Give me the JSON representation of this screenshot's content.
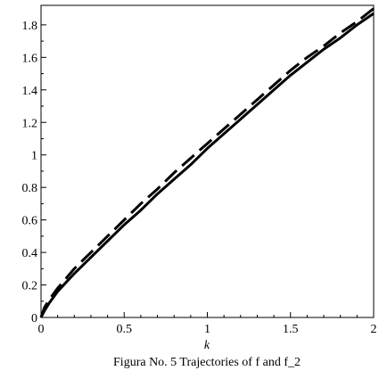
{
  "chart_data": {
    "type": "line",
    "xlabel": "k",
    "ylabel": "",
    "xlim": [
      0,
      2
    ],
    "ylim": [
      0,
      1.92
    ],
    "xticks": [
      "0",
      "0.5",
      "1",
      "1.5",
      "2"
    ],
    "yticks": [
      "0",
      "0.2",
      "0.4",
      "0.6",
      "0.8",
      "1",
      "1.2",
      "1.4",
      "1.6",
      "1.8"
    ],
    "grid": false,
    "series": [
      {
        "style": "solid",
        "color": "#000000",
        "x": [
          0,
          0.02,
          0.05,
          0.1,
          0.2,
          0.3,
          0.4,
          0.5,
          0.6,
          0.7,
          0.8,
          0.9,
          1.0,
          1.1,
          1.2,
          1.3,
          1.4,
          1.5,
          1.6,
          1.7,
          1.8,
          1.9,
          2.0
        ],
        "y": [
          0,
          0.04,
          0.09,
          0.16,
          0.27,
          0.37,
          0.47,
          0.57,
          0.66,
          0.76,
          0.85,
          0.94,
          1.04,
          1.13,
          1.22,
          1.31,
          1.4,
          1.49,
          1.57,
          1.65,
          1.72,
          1.8,
          1.87
        ]
      },
      {
        "style": "dashed",
        "color": "#000000",
        "x": [
          0,
          0.02,
          0.05,
          0.1,
          0.2,
          0.3,
          0.4,
          0.5,
          0.6,
          0.7,
          0.8,
          0.9,
          1.0,
          1.1,
          1.2,
          1.3,
          1.4,
          1.5,
          1.6,
          1.7,
          1.8,
          1.9,
          2.0
        ],
        "y": [
          0,
          0.06,
          0.11,
          0.18,
          0.3,
          0.4,
          0.5,
          0.6,
          0.7,
          0.79,
          0.89,
          0.98,
          1.07,
          1.16,
          1.25,
          1.34,
          1.43,
          1.52,
          1.6,
          1.67,
          1.75,
          1.82,
          1.9
        ]
      }
    ]
  },
  "caption": "Figura No. 5 Trajectories of f and f_2"
}
